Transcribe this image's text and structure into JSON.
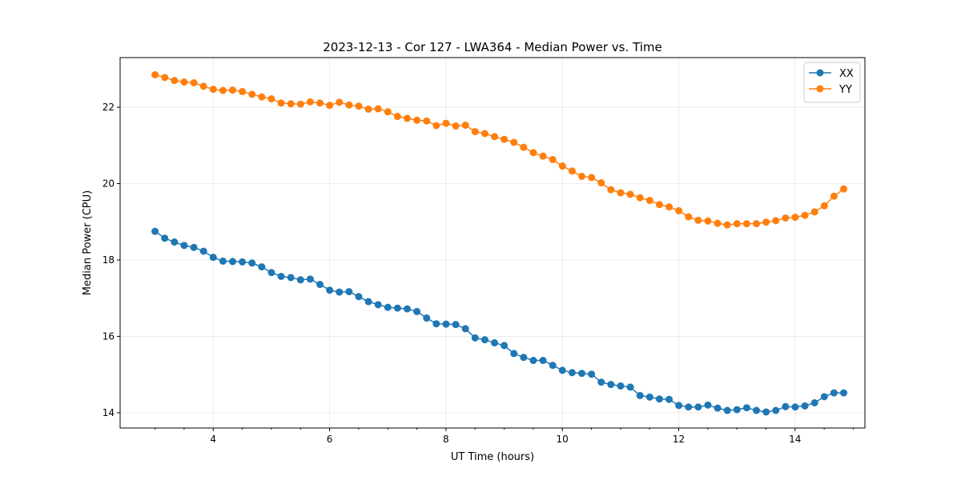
{
  "chart_data": {
    "type": "line",
    "title": "2023-12-13 - Cor 127 - LWA364 - Median Power vs. Time",
    "xlabel": "UT Time (hours)",
    "ylabel": "Median Power (CPU)",
    "xlim": [
      2.4,
      15.2
    ],
    "ylim": [
      13.6,
      23.3
    ],
    "xticks": [
      4,
      6,
      8,
      10,
      12,
      14
    ],
    "yticks": [
      14,
      16,
      18,
      20,
      22
    ],
    "grid": true,
    "legend_position": "top-right",
    "x_start": 3.0,
    "x_step": 0.1667,
    "series": [
      {
        "name": "XX",
        "color": "#1f77b4",
        "values": [
          18.75,
          18.57,
          18.47,
          18.38,
          18.33,
          18.23,
          18.07,
          17.97,
          17.96,
          17.95,
          17.92,
          17.82,
          17.67,
          17.57,
          17.54,
          17.48,
          17.5,
          17.36,
          17.21,
          17.16,
          17.17,
          17.04,
          16.91,
          16.83,
          16.76,
          16.74,
          16.72,
          16.65,
          16.48,
          16.33,
          16.32,
          16.31,
          16.2,
          15.96,
          15.91,
          15.83,
          15.76,
          15.55,
          15.45,
          15.37,
          15.37,
          15.24,
          15.11,
          15.05,
          15.03,
          15.01,
          14.8,
          14.74,
          14.7,
          14.67,
          14.45,
          14.41,
          14.36,
          14.35,
          14.19,
          14.15,
          14.15,
          14.2,
          14.12,
          14.06,
          14.08,
          14.13,
          14.06,
          14.02,
          14.06,
          14.16,
          14.15,
          14.18,
          14.26,
          14.42,
          14.52,
          14.52
        ]
      },
      {
        "name": "YY",
        "color": "#ff7f0e",
        "values": [
          22.85,
          22.78,
          22.7,
          22.66,
          22.64,
          22.55,
          22.47,
          22.44,
          22.45,
          22.41,
          22.34,
          22.27,
          22.22,
          22.11,
          22.09,
          22.08,
          22.14,
          22.11,
          22.05,
          22.13,
          22.06,
          22.03,
          21.95,
          21.96,
          21.88,
          21.76,
          21.71,
          21.66,
          21.64,
          21.52,
          21.58,
          21.51,
          21.53,
          21.36,
          21.31,
          21.23,
          21.16,
          21.08,
          20.95,
          20.81,
          20.72,
          20.63,
          20.46,
          20.33,
          20.19,
          20.16,
          20.02,
          19.84,
          19.76,
          19.72,
          19.63,
          19.56,
          19.45,
          19.39,
          19.29,
          19.13,
          19.04,
          19.02,
          18.96,
          18.92,
          18.95,
          18.95,
          18.95,
          18.99,
          19.03,
          19.1,
          19.12,
          19.17,
          19.26,
          19.42,
          19.67,
          19.86
        ]
      }
    ]
  }
}
